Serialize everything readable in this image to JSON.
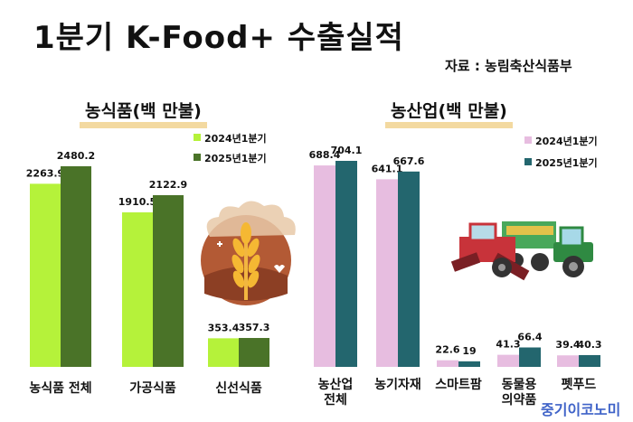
{
  "title": "1분기 K-Food+ 수출실적",
  "source": "자료 : 농림축산식품부",
  "watermark": "중기이코노미",
  "colors": {
    "food_2024": "#b5f23a",
    "food_2025": "#4a7328",
    "agri_2024": "#e7bde0",
    "agri_2025": "#23666e"
  },
  "chart_data": [
    {
      "type": "bar",
      "title": "농식품(백 만불)",
      "categories": [
        "농식품 전체",
        "가공식품",
        "신선식품"
      ],
      "series": [
        {
          "name": "2024년1분기",
          "values": [
            2263.9,
            1910.5,
            353.4
          ]
        },
        {
          "name": "2025년1분기",
          "values": [
            2480.2,
            2122.9,
            357.3
          ]
        }
      ],
      "legend": "top-right",
      "grid": false
    },
    {
      "type": "bar",
      "title": "농산업(백 만불)",
      "categories": [
        "농산업 전체",
        "농기자재",
        "스마트팜",
        "동물용 의약품",
        "펫푸드"
      ],
      "series": [
        {
          "name": "2024년1분기",
          "values": [
            688.4,
            641.1,
            22.6,
            41.3,
            39.4
          ]
        },
        {
          "name": "2025년1분기",
          "values": [
            704.1,
            667.6,
            19,
            66.4,
            40.3
          ]
        }
      ],
      "legend": "top-right",
      "grid": false
    }
  ]
}
